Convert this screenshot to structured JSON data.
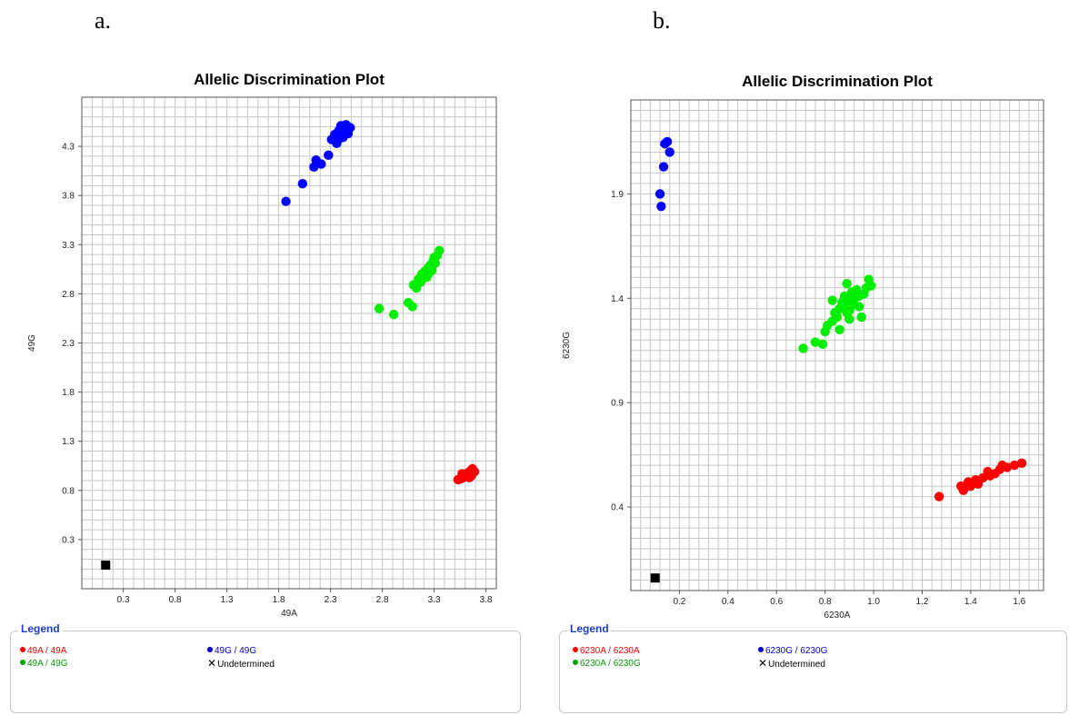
{
  "panels": [
    {
      "label": "a.",
      "legend": {
        "title": "Legend",
        "items": [
          {
            "label": "49A / 49A",
            "color": "#ff0000",
            "marker": "dot"
          },
          {
            "label": "49G / 49G",
            "color": "#0000cc",
            "marker": "dot"
          },
          {
            "label": "49A / 49G",
            "color": "#00a000",
            "marker": "dot"
          },
          {
            "label": "Undetermined",
            "color": "#000000",
            "marker": "x"
          }
        ]
      }
    },
    {
      "label": "b.",
      "legend": {
        "title": "Legend",
        "items": [
          {
            "label": "6230A / 6230A",
            "color": "#ff0000",
            "marker": "dot"
          },
          {
            "label": "6230G / 6230G",
            "color": "#0000cc",
            "marker": "dot"
          },
          {
            "label": "6230A / 6230G",
            "color": "#00a000",
            "marker": "dot"
          },
          {
            "label": "Undetermined",
            "color": "#000000",
            "marker": "x"
          }
        ]
      }
    }
  ],
  "chart_data": [
    {
      "type": "scatter",
      "title": "Allelic Discrimination Plot",
      "xlabel": "49A",
      "ylabel": "49G",
      "xlim": [
        -0.1,
        3.9
      ],
      "ylim": [
        -0.2,
        4.8
      ],
      "xticks": [
        "0.3",
        "0.8",
        "1.3",
        "1.8",
        "2.3",
        "2.8",
        "3.3",
        "3.8"
      ],
      "yticks": [
        "0.3",
        "0.8",
        "1.3",
        "1.8",
        "2.3",
        "2.8",
        "3.3",
        "3.8",
        "4.3"
      ],
      "grid": true,
      "series": [
        {
          "color": "#0000ff",
          "marker": "circle",
          "x": [
            1.87,
            2.03,
            2.14,
            2.16,
            2.21,
            2.28,
            2.31,
            2.34,
            2.37,
            2.38,
            2.4,
            2.42,
            2.44,
            2.45,
            2.47,
            2.49,
            2.36,
            2.41
          ],
          "y": [
            3.74,
            3.92,
            4.09,
            4.16,
            4.12,
            4.21,
            4.37,
            4.42,
            4.36,
            4.46,
            4.51,
            4.39,
            4.47,
            4.52,
            4.43,
            4.49,
            4.33,
            4.41
          ]
        },
        {
          "color": "#00ee00",
          "marker": "circle",
          "x": [
            2.77,
            2.91,
            3.05,
            3.09,
            3.1,
            3.13,
            3.15,
            3.17,
            3.18,
            3.2,
            3.21,
            3.23,
            3.24,
            3.25,
            3.26,
            3.28,
            3.29,
            3.3,
            3.31,
            3.33,
            3.35,
            3.14,
            3.19,
            3.27,
            3.22
          ],
          "y": [
            2.65,
            2.59,
            2.71,
            2.67,
            2.89,
            2.86,
            2.95,
            2.92,
            3.0,
            2.96,
            3.03,
            2.97,
            3.06,
            3.01,
            3.09,
            3.04,
            3.13,
            3.17,
            3.11,
            3.19,
            3.24,
            2.9,
            2.98,
            3.07,
            3.02
          ]
        },
        {
          "color": "#ff0000",
          "marker": "circle",
          "x": [
            3.53,
            3.56,
            3.58,
            3.6,
            3.61,
            3.63,
            3.64,
            3.65,
            3.67,
            3.69,
            3.57,
            3.62,
            3.66
          ],
          "y": [
            0.91,
            0.92,
            0.93,
            0.95,
            0.96,
            0.98,
            0.93,
            1.0,
            1.02,
            0.99,
            0.97,
            0.94,
            0.95
          ]
        },
        {
          "color": "#000000",
          "marker": "square",
          "x": [
            0.13
          ],
          "y": [
            0.04
          ]
        }
      ]
    },
    {
      "type": "scatter",
      "title": "Allelic Discrimination Plot",
      "xlabel": "6230A",
      "ylabel": "6230G",
      "xlim": [
        0.0,
        1.7
      ],
      "ylim": [
        0.0,
        2.35
      ],
      "xticks": [
        "0.2",
        "0.4",
        "0.6",
        "0.8",
        "1.0",
        "1.2",
        "1.4",
        "1.6"
      ],
      "yticks": [
        "0.4",
        "0.9",
        "1.4",
        "1.9"
      ],
      "grid": true,
      "series": [
        {
          "color": "#0000ff",
          "marker": "circle",
          "x": [
            0.12,
            0.125,
            0.135,
            0.14,
            0.15,
            0.16
          ],
          "y": [
            1.9,
            1.84,
            2.03,
            2.14,
            2.15,
            2.1
          ]
        },
        {
          "color": "#00ee00",
          "marker": "circle",
          "x": [
            0.71,
            0.76,
            0.79,
            0.8,
            0.81,
            0.83,
            0.84,
            0.85,
            0.86,
            0.87,
            0.88,
            0.88,
            0.89,
            0.9,
            0.9,
            0.91,
            0.92,
            0.92,
            0.93,
            0.94,
            0.95,
            0.96,
            0.97,
            0.98,
            0.99,
            0.86,
            0.9,
            0.94,
            0.83,
            0.89
          ],
          "y": [
            1.16,
            1.19,
            1.18,
            1.24,
            1.27,
            1.29,
            1.33,
            1.31,
            1.35,
            1.38,
            1.41,
            1.36,
            1.47,
            1.39,
            1.34,
            1.43,
            1.4,
            1.37,
            1.44,
            1.41,
            1.31,
            1.42,
            1.45,
            1.49,
            1.46,
            1.25,
            1.3,
            1.36,
            1.39,
            1.33
          ]
        },
        {
          "color": "#ff0000",
          "marker": "circle",
          "x": [
            1.27,
            1.36,
            1.37,
            1.39,
            1.4,
            1.42,
            1.43,
            1.45,
            1.47,
            1.48,
            1.5,
            1.52,
            1.53,
            1.55,
            1.58,
            1.61
          ],
          "y": [
            0.45,
            0.5,
            0.48,
            0.52,
            0.5,
            0.53,
            0.51,
            0.54,
            0.57,
            0.55,
            0.56,
            0.58,
            0.6,
            0.59,
            0.6,
            0.61
          ]
        },
        {
          "color": "#000000",
          "marker": "square",
          "x": [
            0.1
          ],
          "y": [
            0.06
          ]
        }
      ]
    }
  ]
}
